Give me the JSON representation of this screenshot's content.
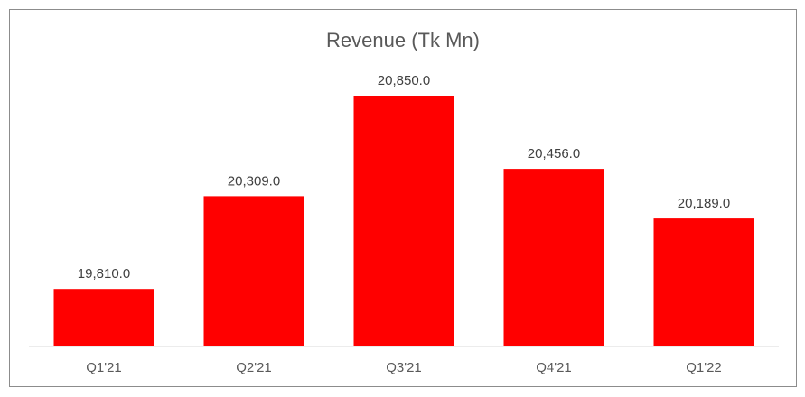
{
  "chart_data": {
    "type": "bar",
    "title": "Revenue (Tk Mn)",
    "categories": [
      "Q1'21",
      "Q2'21",
      "Q3'21",
      "Q4'21",
      "Q1'22"
    ],
    "values": [
      19810.0,
      20309.0,
      20850.0,
      20456.0,
      20189.0
    ],
    "data_labels": [
      "19,810.0",
      "20,309.0",
      "20,850.0",
      "20,456.0",
      "20,189.0"
    ],
    "bar_color": "#ff0000",
    "ylim": [
      19500,
      21000
    ],
    "grid": false,
    "legend": "none"
  }
}
